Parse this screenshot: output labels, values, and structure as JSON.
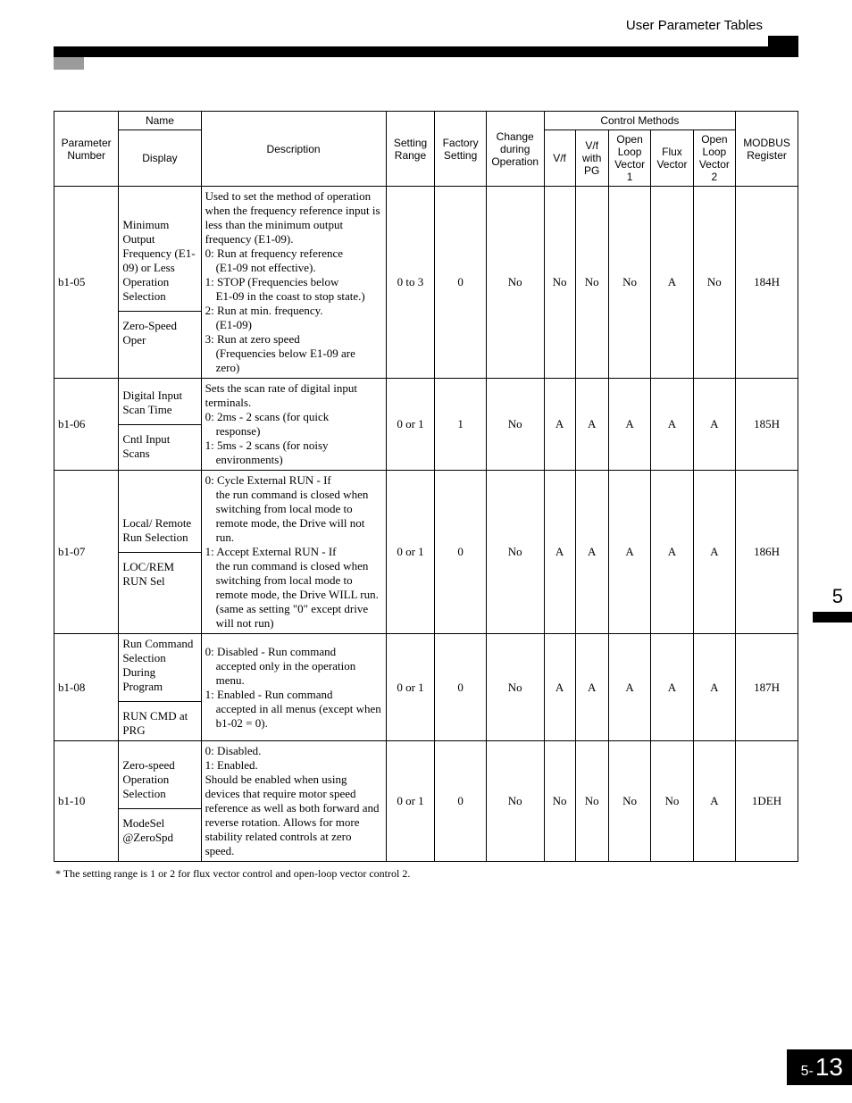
{
  "header": {
    "title": "User Parameter Tables"
  },
  "table": {
    "head": {
      "param_number": "Parameter Number",
      "name_group": "Name",
      "display": "Display",
      "description": "Description",
      "setting_range": "Setting Range",
      "factory_setting": "Factory Setting",
      "change_during": "Change during Operation",
      "control_methods": "Control Methods",
      "vf": "V/f",
      "vf_pg": "V/f with PG",
      "olv1": "Open Loop Vector 1",
      "flux": "Flux Vector",
      "olv2": "Open Loop Vector 2",
      "modbus": "MODBUS Register"
    },
    "rows": [
      {
        "pnum": "b1-05",
        "name": "Minimum Output Frequency (E1-09) or Less Operation Selection",
        "display": "Zero-Speed Oper",
        "desc_html": "Used to set the method of operation when the frequency reference input is less than the minimum output frequency (E1-09).<br>0: Run at frequency reference<span class='indent'>(E1-09 not effective).</span>1: STOP (Frequencies below<span class='indent'>E1-09 in the coast to stop state.)</span>2: Run at min. frequency.<span class='indent'>(E1-09)</span>3: Run at zero speed<span class='indent'>(Frequencies below E1-09 are zero)</span>",
        "range": "0 to 3",
        "factory": "0",
        "change": "No",
        "vf": "No",
        "vfpg": "No",
        "olv1": "No",
        "flux": "A",
        "olv2": "No",
        "modbus": "184H"
      },
      {
        "pnum": "b1-06",
        "name": "Digital Input Scan Time",
        "display": "Cntl Input Scans",
        "desc_html": "Sets the scan rate of digital input terminals.<br>0: 2ms - 2 scans (for quick<span class='indent'>response)</span>1: 5ms - 2 scans (for noisy<span class='indent'>environments)</span>",
        "range": "0 or 1",
        "factory": "1",
        "change": "No",
        "vf": "A",
        "vfpg": "A",
        "olv1": "A",
        "flux": "A",
        "olv2": "A",
        "modbus": "185H"
      },
      {
        "pnum": "b1-07",
        "name": "Local/ Remote Run Selection",
        "display": "LOC/REM RUN Sel",
        "desc_html": "0: Cycle External RUN - If<span class='indent'>the run command is closed when switching from local mode to remote mode, the Drive will not run.</span>1: Accept External RUN - If<span class='indent'>the run command is closed when switching from local mode to remote mode, the Drive WILL run. (same as setting \"0\" except drive will not run)</span>",
        "range": "0 or 1",
        "factory": "0",
        "change": "No",
        "vf": "A",
        "vfpg": "A",
        "olv1": "A",
        "flux": "A",
        "olv2": "A",
        "modbus": "186H"
      },
      {
        "pnum": "b1-08",
        "name": "Run Command Selection During Program",
        "display": "RUN CMD at PRG",
        "desc_html": "0: Disabled - Run command<span class='indent'>accepted only in the operation menu.</span>1: Enabled - Run command<span class='indent'>accepted in all menus (except when b1-02 = 0).</span>",
        "range": "0 or 1",
        "factory": "0",
        "change": "No",
        "vf": "A",
        "vfpg": "A",
        "olv1": "A",
        "flux": "A",
        "olv2": "A",
        "modbus": "187H"
      },
      {
        "pnum": "b1-10",
        "name": "Zero-speed Operation Selection",
        "display": "ModeSel @ZeroSpd",
        "desc_html": "0: Disabled.<br>1: Enabled.<br>Should be enabled when using devices that require motor speed reference as well as both forward and reverse rotation. Allows for more stability related controls at zero speed.",
        "range": "0 or 1",
        "factory": "0",
        "change": "No",
        "vf": "No",
        "vfpg": "No",
        "olv1": "No",
        "flux": "No",
        "olv2": "A",
        "modbus": "1DEH"
      }
    ]
  },
  "footnote": "*  The setting range is 1 or 2 for flux vector control and open-loop vector control 2.",
  "side_chapter": "5",
  "page_prefix": "5-",
  "page_num": "13"
}
